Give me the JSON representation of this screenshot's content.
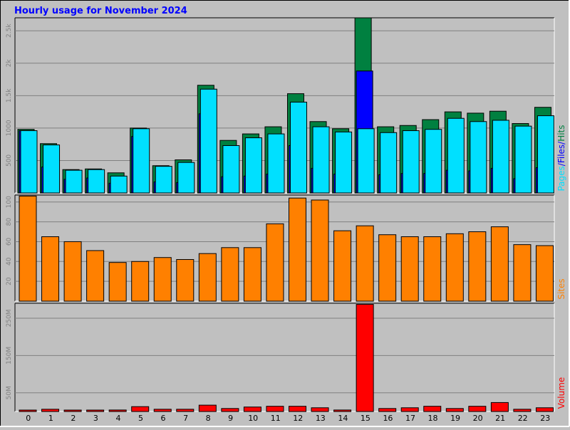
{
  "title": "Hourly usage for November 2024",
  "colors": {
    "background": "#c0c0c0",
    "title": "#0000ff",
    "hits": "#008040",
    "files": "#0000ff",
    "pages": "#00e0ff",
    "sites": "#ff8000",
    "volume": "#ff0000",
    "grid": "#808080"
  },
  "chart_data": [
    {
      "type": "bar",
      "panel": "hits-files-pages",
      "categories": [
        "0",
        "1",
        "2",
        "3",
        "4",
        "5",
        "6",
        "7",
        "8",
        "9",
        "10",
        "11",
        "12",
        "13",
        "14",
        "15",
        "16",
        "17",
        "18",
        "19",
        "20",
        "21",
        "22",
        "23"
      ],
      "ylim": [
        0,
        2700
      ],
      "yticks": [
        500,
        1000,
        1500,
        2000,
        2500
      ],
      "ytick_labels": [
        "500",
        "1000",
        "1.5k",
        "2k",
        "2.5k"
      ],
      "legend": [
        "Pages",
        "/",
        "Files",
        "/",
        "Hits"
      ],
      "legend_position": "right-vertical",
      "series": [
        {
          "name": "Hits",
          "values": [
            980,
            760,
            360,
            370,
            310,
            1000,
            420,
            510,
            1660,
            810,
            910,
            1020,
            1530,
            1100,
            990,
            2700,
            1020,
            1040,
            1130,
            1250,
            1230,
            1260,
            1070,
            1320
          ]
        },
        {
          "name": "Files",
          "values": [
            960,
            400,
            210,
            230,
            150,
            870,
            170,
            160,
            1220,
            250,
            260,
            290,
            730,
            380,
            290,
            1880,
            280,
            300,
            300,
            350,
            340,
            380,
            220,
            390
          ]
        },
        {
          "name": "Pages",
          "values": [
            960,
            740,
            350,
            360,
            260,
            990,
            410,
            470,
            1600,
            730,
            850,
            910,
            1400,
            1020,
            940,
            990,
            930,
            960,
            980,
            1150,
            1100,
            1120,
            1030,
            1190
          ]
        }
      ]
    },
    {
      "type": "bar",
      "panel": "sites",
      "categories": [
        "0",
        "1",
        "2",
        "3",
        "4",
        "5",
        "6",
        "7",
        "8",
        "9",
        "10",
        "11",
        "12",
        "13",
        "14",
        "15",
        "16",
        "17",
        "18",
        "19",
        "20",
        "21",
        "22",
        "23"
      ],
      "ylim": [
        0,
        107
      ],
      "yticks": [
        20,
        40,
        60,
        80,
        100
      ],
      "legend": [
        "Sites"
      ],
      "legend_position": "right-vertical",
      "series": [
        {
          "name": "Sites",
          "values": [
            106,
            65,
            60,
            51,
            39,
            40,
            44,
            42,
            48,
            54,
            54,
            78,
            104,
            102,
            71,
            76,
            67,
            65,
            65,
            68,
            70,
            75,
            57,
            56
          ]
        }
      ]
    },
    {
      "type": "bar",
      "panel": "volume",
      "categories": [
        "0",
        "1",
        "2",
        "3",
        "4",
        "5",
        "6",
        "7",
        "8",
        "9",
        "10",
        "11",
        "12",
        "13",
        "14",
        "15",
        "16",
        "17",
        "18",
        "19",
        "20",
        "21",
        "22",
        "23"
      ],
      "ylim": [
        0,
        290
      ],
      "yticks": [
        50,
        150,
        250
      ],
      "ytick_labels": [
        "50M",
        "150M",
        "250M"
      ],
      "legend": [
        "Volume"
      ],
      "legend_position": "right-vertical",
      "series": [
        {
          "name": "Volume",
          "values": [
            2,
            6,
            3,
            3,
            4,
            13,
            6,
            6,
            17,
            8,
            12,
            14,
            14,
            10,
            4,
            287,
            8,
            10,
            14,
            8,
            14,
            24,
            6,
            10
          ]
        }
      ]
    }
  ]
}
